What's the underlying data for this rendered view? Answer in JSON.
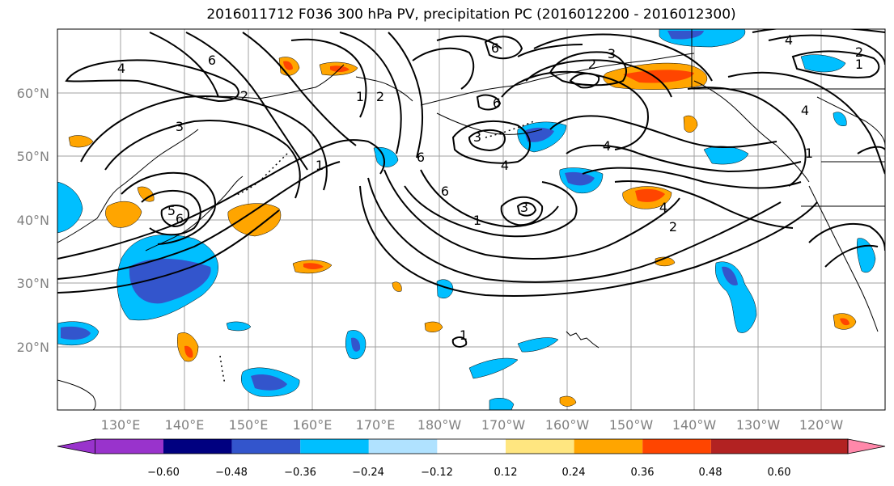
{
  "title": "2016011712 F036 300 hPa PV, precipitation PC (2016012200 - 2016012300)",
  "lat_labels": [
    "60°N",
    "50°N",
    "40°N",
    "30°N",
    "20°N"
  ],
  "lon_labels": [
    "130°E",
    "140°E",
    "150°E",
    "160°E",
    "170°E",
    "180°W",
    "170°W",
    "160°W",
    "150°W",
    "140°W",
    "130°W",
    "120°W"
  ],
  "colorbar": {
    "tick_labels": [
      "−0.60",
      "−0.48",
      "−0.36",
      "−0.24",
      "−0.12",
      "0.12",
      "0.24",
      "0.36",
      "0.48",
      "0.60"
    ],
    "colors": [
      "#9933cc",
      "#000080",
      "#3355cc",
      "#00bfff",
      "#b0e2ff",
      "#ffffff",
      "#ffe680",
      "#ffa500",
      "#ff4500",
      "#b22222",
      "#ff88aa"
    ]
  },
  "contour_labels": [
    "4",
    "6",
    "3",
    "5",
    "6",
    "1",
    "2",
    "1",
    "2",
    "3",
    "6",
    "4",
    "6",
    "2",
    "6",
    "1",
    "3",
    "6",
    "4",
    "2",
    "4",
    "1",
    "2",
    "1",
    "4",
    "1",
    "4",
    "3"
  ],
  "colors": {
    "negative_dark": "#3355cc",
    "negative_mid": "#00bfff",
    "positive_mid": "#ffa500",
    "positive_strong": "#ff4500"
  }
}
